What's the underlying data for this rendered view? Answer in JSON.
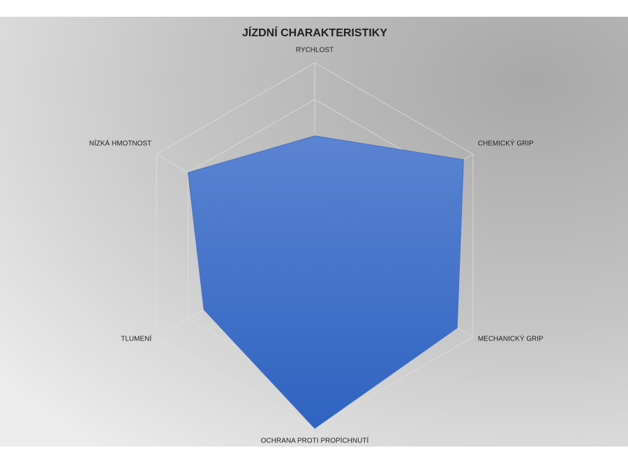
{
  "chart_data": {
    "type": "radar",
    "title": "JÍZDNÍ CHARAKTERISTIKY",
    "categories": [
      "RYCHLOST",
      "CHEMICKÝ GRIP",
      "MECHANICKÝ GRIP",
      "OCHRANA PROTI PROPÍCHNUTÍ",
      "TLUMENÍ",
      "NÍZKÁ HMOTNOST"
    ],
    "values": [
      3,
      4.7,
      4.5,
      5,
      3.5,
      4
    ],
    "color": "#4472c4",
    "rlim": [
      0,
      5
    ],
    "rticks": [
      1,
      2,
      3,
      4,
      5
    ],
    "grid": true
  }
}
